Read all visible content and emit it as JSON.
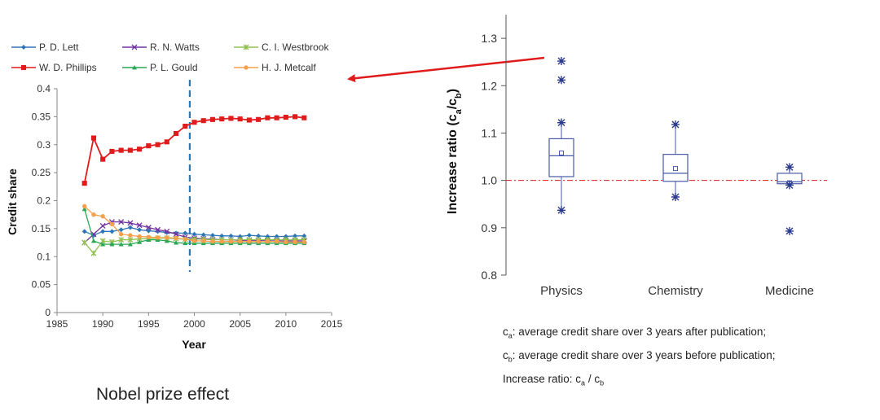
{
  "colors": {
    "lett": "#2e75b6",
    "watts": "#7030a0",
    "westbrook": "#92c050",
    "phillips": "#e01b1b",
    "gould": "#2aa655",
    "metcalf": "#f5a04a",
    "box": "#4a5aa8",
    "arrow": "#e01b1b",
    "vline": "#2e75b6"
  },
  "caption": "Nobel prize effect",
  "definitions": [
    {
      "sym": "c",
      "sub": "a",
      "text": ": average credit share over 3 years after publication;"
    },
    {
      "sym": "c",
      "sub": "b",
      "text": ":  average credit share over 3 years before publication;"
    },
    {
      "sym": "Increase ratio: c",
      "sub": "a",
      "mid": " / c",
      "sub2": "b"
    }
  ],
  "chart_data": [
    {
      "type": "line",
      "title": "",
      "xlabel": "Year",
      "ylabel": "Credit share",
      "xlim": [
        1985,
        2015
      ],
      "ylim": [
        0,
        0.4
      ],
      "xticks": [
        "1985",
        "1990",
        "1995",
        "2000",
        "2005",
        "2010",
        "2015"
      ],
      "yticks": [
        "0",
        "0.05",
        "0.1",
        "0.15",
        "0.2",
        "0.25",
        "0.3",
        "0.35",
        "0.4"
      ],
      "xtick_values": [
        1985,
        1990,
        1995,
        2000,
        2005,
        2010,
        2015
      ],
      "ytick_values": [
        0,
        0.05,
        0.1,
        0.15,
        0.2,
        0.25,
        0.3,
        0.35,
        0.4
      ],
      "vline_x": 1999.5,
      "legend_position": "top",
      "x": [
        1988,
        1989,
        1990,
        1991,
        1992,
        1993,
        1994,
        1995,
        1996,
        1997,
        1998,
        1999,
        2000,
        2001,
        2002,
        2003,
        2004,
        2005,
        2006,
        2007,
        2008,
        2009,
        2010,
        2011,
        2012
      ],
      "series": [
        {
          "name": "P. D. Lett",
          "color_key": "lett",
          "marker": "diamond",
          "values": [
            0.145,
            0.138,
            0.145,
            0.145,
            0.148,
            0.152,
            0.148,
            0.146,
            0.145,
            0.143,
            0.142,
            0.142,
            0.14,
            0.139,
            0.138,
            0.137,
            0.137,
            0.136,
            0.138,
            0.137,
            0.136,
            0.136,
            0.136,
            0.137,
            0.137
          ]
        },
        {
          "name": "R. N. Watts",
          "color_key": "watts",
          "marker": "x",
          "values": [
            0.125,
            0.14,
            0.155,
            0.162,
            0.162,
            0.16,
            0.156,
            0.152,
            0.148,
            0.145,
            0.14,
            0.135,
            0.133,
            0.132,
            0.131,
            0.13,
            0.13,
            0.129,
            0.129,
            0.129,
            0.128,
            0.128,
            0.128,
            0.128,
            0.128
          ]
        },
        {
          "name": "C. I. Westbrook",
          "color_key": "westbrook",
          "marker": "star",
          "values": [
            0.125,
            0.106,
            0.128,
            0.126,
            0.13,
            0.13,
            0.132,
            0.132,
            0.133,
            0.133,
            0.132,
            0.131,
            0.131,
            0.131,
            0.13,
            0.13,
            0.13,
            0.13,
            0.13,
            0.13,
            0.13,
            0.13,
            0.13,
            0.13,
            0.13
          ]
        },
        {
          "name": "W. D. Phillips",
          "color_key": "phillips",
          "marker": "square",
          "values": [
            0.231,
            0.312,
            0.274,
            0.288,
            0.29,
            0.29,
            0.292,
            0.298,
            0.3,
            0.305,
            0.32,
            0.333,
            0.34,
            0.343,
            0.345,
            0.346,
            0.347,
            0.346,
            0.344,
            0.345,
            0.348,
            0.348,
            0.349,
            0.35,
            0.348
          ]
        },
        {
          "name": "P. L. Gould",
          "color_key": "gould",
          "marker": "triangle",
          "values": [
            0.185,
            0.128,
            0.122,
            0.122,
            0.122,
            0.122,
            0.126,
            0.13,
            0.13,
            0.128,
            0.125,
            0.124,
            0.124,
            0.124,
            0.124,
            0.124,
            0.124,
            0.124,
            0.124,
            0.124,
            0.124,
            0.124,
            0.124,
            0.124,
            0.124
          ]
        },
        {
          "name": "H. J. Metcalf",
          "color_key": "metcalf",
          "marker": "circle",
          "values": [
            0.19,
            0.175,
            0.172,
            0.158,
            0.14,
            0.138,
            0.136,
            0.135,
            0.134,
            0.134,
            0.133,
            0.131,
            0.128,
            0.128,
            0.127,
            0.127,
            0.127,
            0.127,
            0.127,
            0.127,
            0.127,
            0.127,
            0.126,
            0.126,
            0.126
          ]
        }
      ]
    },
    {
      "type": "box",
      "title": "",
      "xlabel": "",
      "ylabel": "Increase ratio (c",
      "ylabel_sub_a": "a",
      "ylabel_mid": "/c",
      "ylabel_sub_b": "b",
      "ylabel_end": ")",
      "ylim": [
        0.8,
        1.35
      ],
      "yticks": [
        "0.8",
        "0.9",
        "1.0",
        "1.1",
        "1.2",
        "1.3"
      ],
      "ytick_values": [
        0.8,
        0.9,
        1.0,
        1.1,
        1.2,
        1.3
      ],
      "reference_line": 1.0,
      "categories": [
        "Physics",
        "Chemistry",
        "Medicine"
      ],
      "boxes": [
        {
          "category": "Physics",
          "whisker_low": 0.937,
          "q1": 1.008,
          "median": 1.052,
          "q3": 1.088,
          "whisker_high": 1.125,
          "mean": 1.058,
          "outliers": [
            0.937,
            1.122,
            1.212,
            1.252
          ]
        },
        {
          "category": "Chemistry",
          "whisker_low": 0.965,
          "q1": 0.998,
          "median": 1.015,
          "q3": 1.055,
          "whisker_high": 1.118,
          "mean": 1.025,
          "outliers": [
            0.965,
            1.118
          ]
        },
        {
          "category": "Medicine",
          "whisker_low": 0.99,
          "q1": 0.993,
          "median": 0.997,
          "q3": 1.015,
          "whisker_high": 1.028,
          "mean": 0.995,
          "outliers": [
            0.893,
            0.99,
            1.028
          ]
        }
      ]
    }
  ]
}
